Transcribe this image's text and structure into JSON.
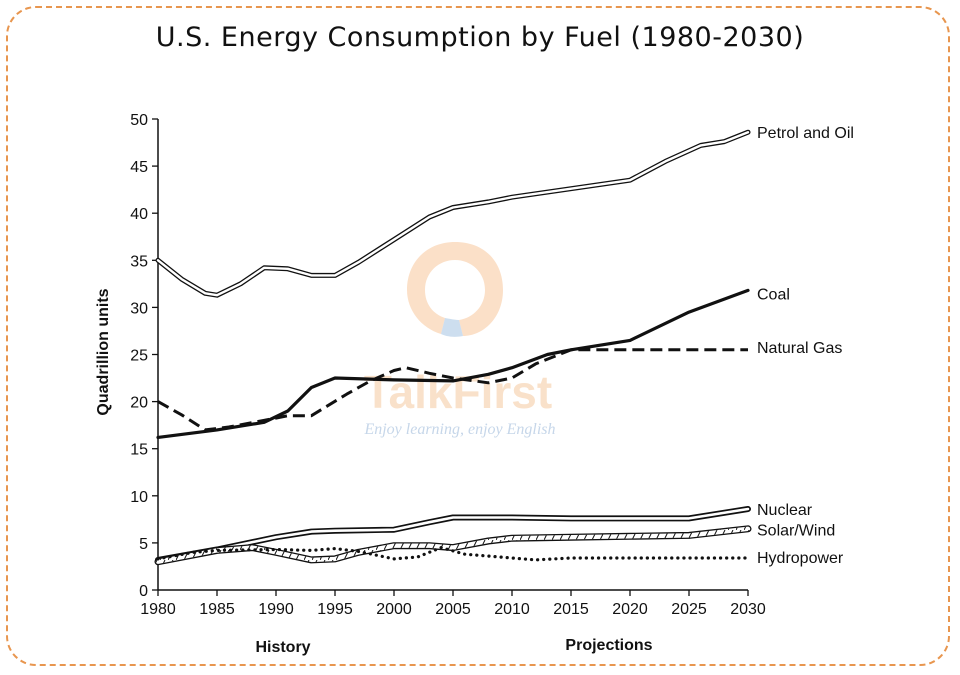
{
  "chart_data": {
    "type": "line",
    "title": "U.S. Energy Consumption by Fuel (1980-2030)",
    "ylabel": "Quadrillion units",
    "xlabel_left": "History",
    "xlabel_right": "Projections",
    "xlim": [
      1980,
      2030
    ],
    "ylim": [
      0,
      50
    ],
    "x_ticks": [
      1980,
      1985,
      1990,
      1995,
      2000,
      2005,
      2010,
      2015,
      2020,
      2025,
      2030
    ],
    "y_ticks": [
      0,
      5,
      10,
      15,
      20,
      25,
      30,
      35,
      40,
      45,
      50
    ],
    "grid": false,
    "legend": "labels at right end of each line",
    "series": [
      {
        "name": "Petrol and Oil",
        "style": "double",
        "points": [
          [
            1980,
            35
          ],
          [
            1982,
            33
          ],
          [
            1984,
            31.5
          ],
          [
            1985,
            31.3
          ],
          [
            1987,
            32.5
          ],
          [
            1989,
            34.2
          ],
          [
            1991,
            34.1
          ],
          [
            1993,
            33.4
          ],
          [
            1995,
            33.4
          ],
          [
            1997,
            34.8
          ],
          [
            2000,
            37.2
          ],
          [
            2003,
            39.6
          ],
          [
            2005,
            40.6
          ],
          [
            2008,
            41.2
          ],
          [
            2010,
            41.7
          ],
          [
            2015,
            42.6
          ],
          [
            2020,
            43.5
          ],
          [
            2023,
            45.5
          ],
          [
            2026,
            47.2
          ],
          [
            2028,
            47.6
          ],
          [
            2030,
            48.6
          ]
        ]
      },
      {
        "name": "Coal",
        "style": "solid",
        "points": [
          [
            1980,
            16.2
          ],
          [
            1985,
            17
          ],
          [
            1989,
            17.8
          ],
          [
            1991,
            19
          ],
          [
            1993,
            21.5
          ],
          [
            1995,
            22.5
          ],
          [
            2000,
            22.3
          ],
          [
            2005,
            22.2
          ],
          [
            2008,
            22.9
          ],
          [
            2010,
            23.6
          ],
          [
            2013,
            25
          ],
          [
            2015,
            25.5
          ],
          [
            2020,
            26.5
          ],
          [
            2025,
            29.5
          ],
          [
            2030,
            31.8
          ]
        ]
      },
      {
        "name": "Natural Gas",
        "style": "dashed",
        "points": [
          [
            1980,
            20
          ],
          [
            1982,
            18.6
          ],
          [
            1984,
            17
          ],
          [
            1986,
            17.3
          ],
          [
            1989,
            18
          ],
          [
            1991,
            18.5
          ],
          [
            1993,
            18.5
          ],
          [
            1996,
            20.8
          ],
          [
            1998,
            22.2
          ],
          [
            2000,
            23.3
          ],
          [
            2001,
            23.6
          ],
          [
            2003,
            23
          ],
          [
            2005,
            22.5
          ],
          [
            2008,
            22
          ],
          [
            2010,
            22.5
          ],
          [
            2012,
            24
          ],
          [
            2015,
            25.5
          ],
          [
            2020,
            25.5
          ],
          [
            2025,
            25.5
          ],
          [
            2030,
            25.5
          ]
        ]
      },
      {
        "name": "Nuclear",
        "style": "double-thick",
        "points": [
          [
            1980,
            3.2
          ],
          [
            1985,
            4.3
          ],
          [
            1990,
            5.6
          ],
          [
            1993,
            6.2
          ],
          [
            1995,
            6.3
          ],
          [
            2000,
            6.4
          ],
          [
            2003,
            7.2
          ],
          [
            2005,
            7.7
          ],
          [
            2010,
            7.7
          ],
          [
            2015,
            7.6
          ],
          [
            2020,
            7.6
          ],
          [
            2025,
            7.6
          ],
          [
            2030,
            8.6
          ]
        ]
      },
      {
        "name": "Solar/Wind",
        "style": "double-hatched",
        "points": [
          [
            1980,
            3
          ],
          [
            1985,
            4.2
          ],
          [
            1988,
            4.5
          ],
          [
            1990,
            4
          ],
          [
            1993,
            3.2
          ],
          [
            1995,
            3.3
          ],
          [
            1997,
            4
          ],
          [
            2000,
            4.7
          ],
          [
            2003,
            4.7
          ],
          [
            2005,
            4.5
          ],
          [
            2008,
            5.2
          ],
          [
            2010,
            5.5
          ],
          [
            2015,
            5.6
          ],
          [
            2020,
            5.7
          ],
          [
            2025,
            5.8
          ],
          [
            2030,
            6.5
          ]
        ]
      },
      {
        "name": "Hydropower",
        "style": "dotted",
        "points": [
          [
            1980,
            3.3
          ],
          [
            1983,
            4
          ],
          [
            1985,
            4.2
          ],
          [
            1990,
            4.3
          ],
          [
            1993,
            4.2
          ],
          [
            1995,
            4.4
          ],
          [
            1997,
            4.1
          ],
          [
            2000,
            3.3
          ],
          [
            2002,
            3.5
          ],
          [
            2004,
            4.5
          ],
          [
            2006,
            3.8
          ],
          [
            2008,
            3.6
          ],
          [
            2010,
            3.4
          ],
          [
            2012,
            3.2
          ],
          [
            2015,
            3.4
          ],
          [
            2020,
            3.4
          ],
          [
            2025,
            3.4
          ],
          [
            2030,
            3.4
          ]
        ]
      }
    ]
  },
  "watermark": {
    "brand": "TalkFirst",
    "slogan": "Enjoy learning, enjoy English"
  },
  "colors": {
    "frame": "#e8964f",
    "ink": "#111111"
  }
}
